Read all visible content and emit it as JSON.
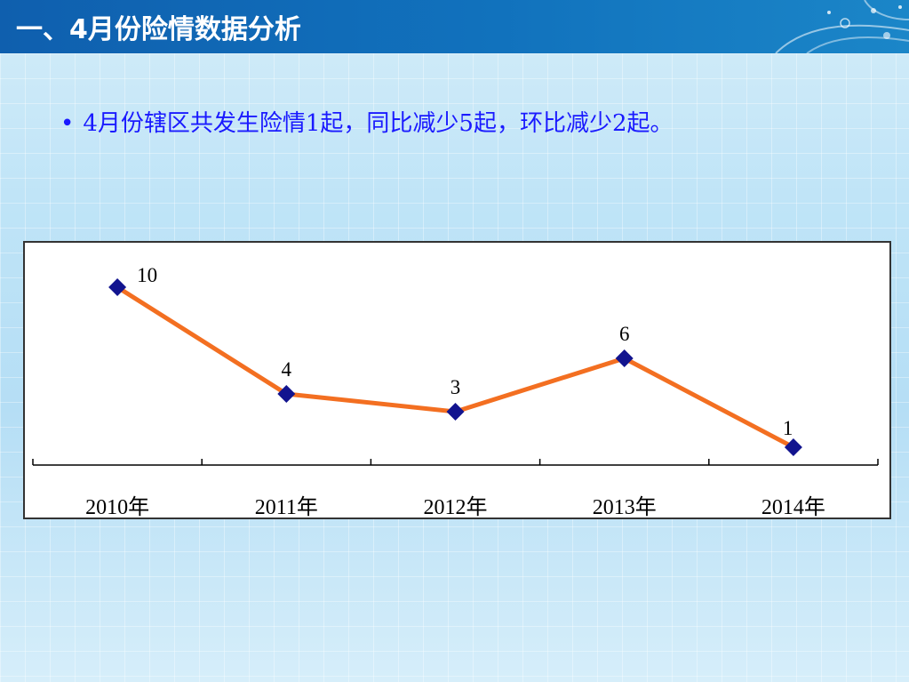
{
  "title": "一、4月份险情数据分析",
  "bullet": {
    "marker": "•",
    "text": "4月份辖区共发生险情1起，同比减少5起，环比减少2起。"
  },
  "colors": {
    "title_bar": "#1172bd",
    "bullet_text": "#1a1aff",
    "line": "#f36f21",
    "marker": "#12148f"
  },
  "chart_data": {
    "type": "line",
    "categories": [
      "2010年",
      "2011年",
      "2012年",
      "2013年",
      "2014年"
    ],
    "series": [
      {
        "values": [
          10,
          4,
          3,
          6,
          1
        ]
      }
    ],
    "data_labels": [
      "10",
      "4",
      "3",
      "6",
      "1"
    ],
    "title": "",
    "xlabel": "",
    "ylabel": "",
    "ylim": [
      0,
      11
    ],
    "grid": false,
    "legend": "none",
    "marker": "diamond"
  }
}
